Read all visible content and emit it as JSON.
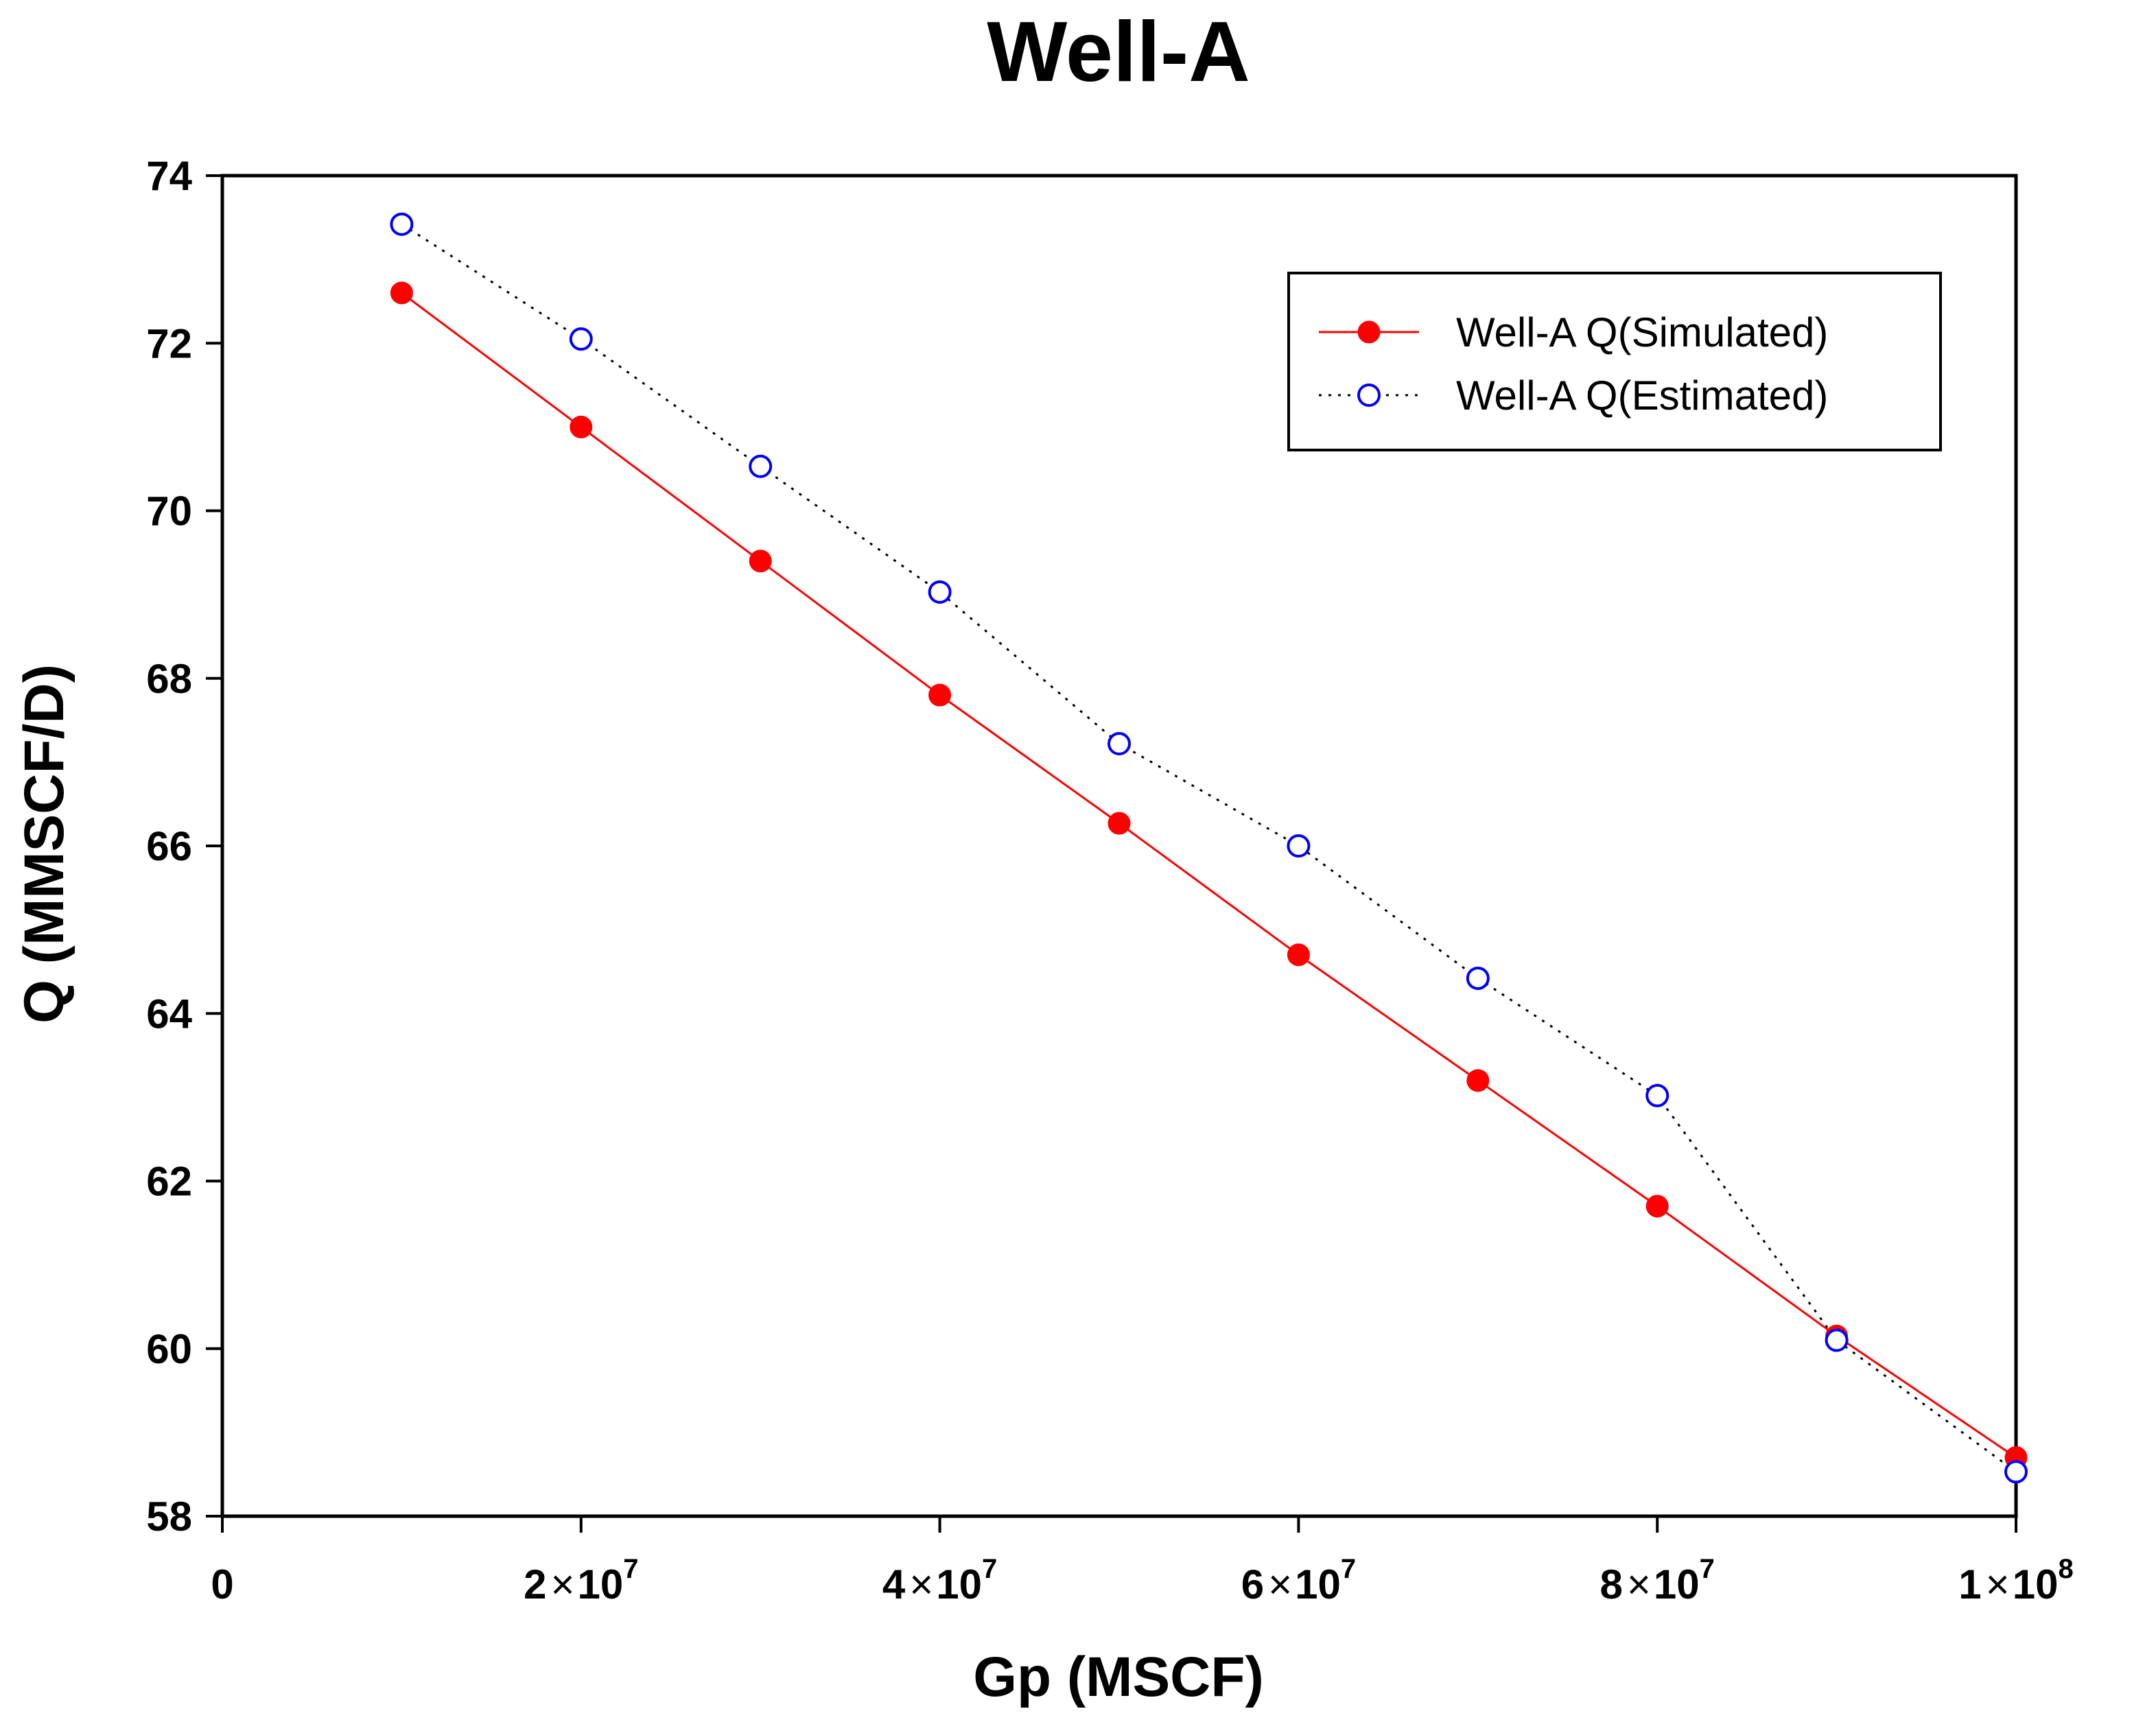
{
  "chart_data": {
    "type": "line",
    "title": "Well-A",
    "xlabel": "Gp (MSCF)",
    "ylabel": "Q (MMSCF/D)",
    "xlim": [
      0,
      100000000
    ],
    "ylim": [
      58,
      74
    ],
    "x_ticks": [
      {
        "value": 0,
        "mantissa": "0",
        "exponent": ""
      },
      {
        "value": 20000000,
        "mantissa": "2",
        "exponent": "7"
      },
      {
        "value": 40000000,
        "mantissa": "4",
        "exponent": "7"
      },
      {
        "value": 60000000,
        "mantissa": "6",
        "exponent": "7"
      },
      {
        "value": 80000000,
        "mantissa": "8",
        "exponent": "7"
      },
      {
        "value": 100000000,
        "mantissa": "1",
        "exponent": "8"
      }
    ],
    "x_tick_times": "×",
    "x_tick_base": "10",
    "y_ticks": [
      58,
      60,
      62,
      64,
      66,
      68,
      70,
      72,
      74
    ],
    "grid": false,
    "legend_position": "top-right",
    "x": [
      10000000,
      20000000,
      30000000,
      40000000,
      50000000,
      60000000,
      70000000,
      80000000,
      90000000,
      100000000
    ],
    "series": [
      {
        "name": "Well-A Q(Simulated)",
        "color": "#ff0000",
        "line_style": "solid",
        "marker": "filled-circle",
        "values": [
          72.6,
          71.0,
          69.4,
          67.8,
          66.27,
          64.7,
          63.2,
          61.7,
          60.15,
          58.7
        ]
      },
      {
        "name": "Well-A Q(Estimated)",
        "color": "#0000ff",
        "line_style": "dotted",
        "marker": "open-circle",
        "values": [
          73.42,
          72.05,
          70.53,
          69.03,
          67.22,
          66.0,
          64.42,
          63.02,
          60.1,
          58.53
        ]
      }
    ]
  }
}
